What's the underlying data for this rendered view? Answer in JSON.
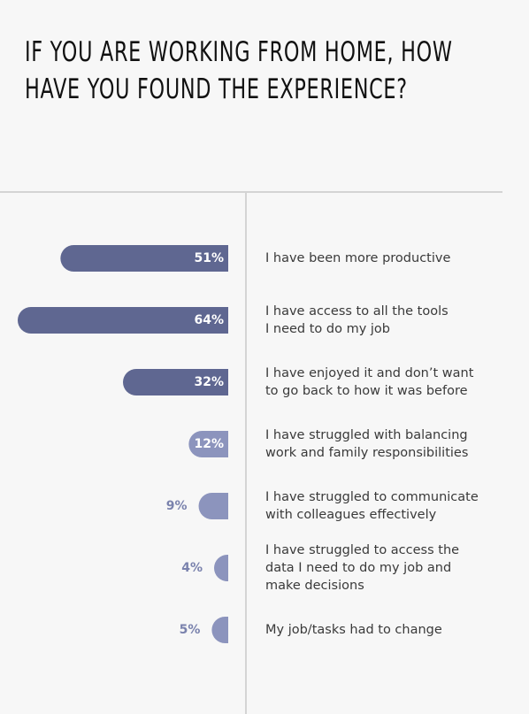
{
  "page": {
    "background": "#f7f7f7"
  },
  "title": "IF YOU ARE WORKING FROM HOME, HOW HAVE YOU FOUND THE EXPERIENCE?",
  "colors": {
    "bar_dark": "#5f6791",
    "bar_light": "#8c94bd",
    "label_inside": "#ffffff",
    "label_outside": "#7a82ad",
    "category_text": "#3a3a3a",
    "rule": "#d4d4d4"
  },
  "chart_data": {
    "type": "bar",
    "orientation": "horizontal",
    "direction": "right-to-left",
    "title": "IF YOU ARE WORKING FROM HOME, HOW HAVE YOU FOUND THE EXPERIENCE?",
    "xlabel": "",
    "ylabel": "",
    "unit": "%",
    "xlim": [
      0,
      64
    ],
    "grid": false,
    "legend": "none",
    "categories": [
      [
        "I have been more productive"
      ],
      [
        "I have access to all the tools",
        "I need to do my job"
      ],
      [
        "I have enjoyed it and don’t want",
        "to go back to how it was before"
      ],
      [
        "I have struggled with balancing",
        "work and family responsibilities"
      ],
      [
        "I have struggled to communicate",
        "with colleagues effectively"
      ],
      [
        "I have struggled to access the",
        "data I need to do my job and",
        "make decisions"
      ],
      [
        "My job/tasks had to change"
      ]
    ],
    "values": [
      51,
      64,
      32,
      12,
      9,
      4,
      5
    ],
    "value_labels": [
      "51%",
      "64%",
      "32%",
      "12%",
      "9%",
      "4%",
      "5%"
    ]
  }
}
